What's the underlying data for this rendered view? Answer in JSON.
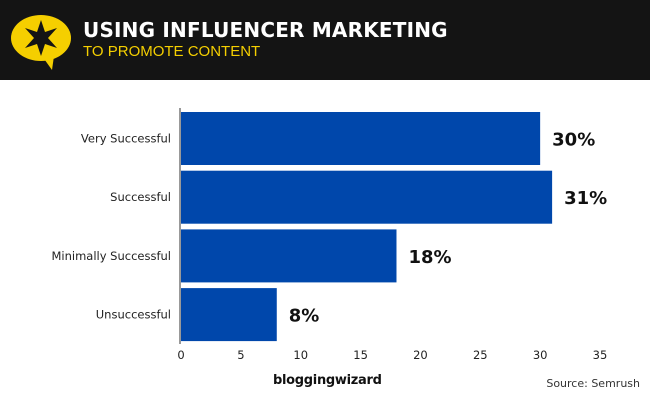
{
  "header": {
    "title": "USING INFLUENCER MARKETING",
    "subtitle": "TO PROMOTE CONTENT",
    "icon": "star-speech-bubble-icon",
    "accent": "#f5cf00"
  },
  "footer": {
    "brand": "bloggingwizard",
    "source": "Source: Semrush"
  },
  "chart_data": {
    "type": "bar",
    "orientation": "horizontal",
    "categories": [
      "Very Successful",
      "Successful",
      "Minimally Successful",
      "Unsuccessful"
    ],
    "values": [
      30,
      31,
      18,
      8
    ],
    "data_labels": [
      "30%",
      "31%",
      "18%",
      "8%"
    ],
    "xlim": [
      0,
      35
    ],
    "xticks": [
      0,
      5,
      10,
      15,
      20,
      25,
      30,
      35
    ],
    "bar_color": "#0047ab",
    "grid": false
  }
}
